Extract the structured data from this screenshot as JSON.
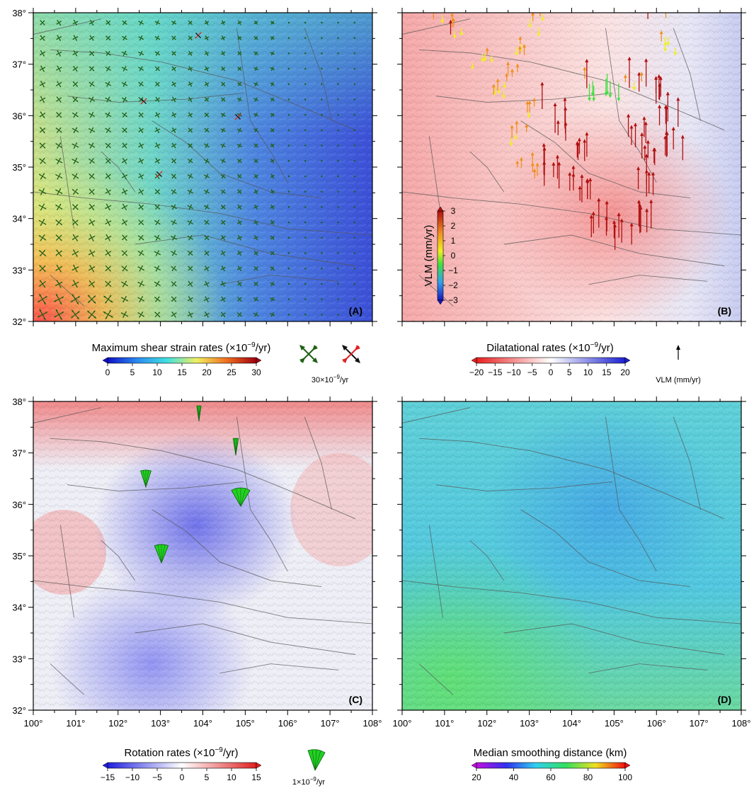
{
  "figure": {
    "x_axis_labels": [
      "100°",
      "101°",
      "102°",
      "103°",
      "104°",
      "105°",
      "106°",
      "107°",
      "108°"
    ],
    "y_axis_labels": [
      "38°",
      "37°",
      "36°",
      "35°",
      "34°",
      "33°",
      "32°"
    ],
    "colors": {
      "fault_line": "#555555",
      "strain_arrow": "#1f5f14",
      "strain_arrow_highlight": "#e02020",
      "rotation_wedge": "#22d022"
    }
  },
  "panels": [
    {
      "id": "A",
      "label": "(A)"
    },
    {
      "id": "B",
      "label": "(B)"
    },
    {
      "id": "C",
      "label": "(C)"
    },
    {
      "id": "D",
      "label": "(D)"
    }
  ],
  "colorbars": {
    "shear": {
      "title": "Maximum shear strain rates (×10",
      "title_sup": "−9",
      "title_end": "/yr)",
      "ticks": [
        "0",
        "5",
        "10",
        "15",
        "20",
        "25",
        "30"
      ],
      "legend_label": "30×10",
      "legend_sup": "−9",
      "legend_end": "/yr"
    },
    "dilatation": {
      "title": "Dilatational rates (×10",
      "title_sup": "−9",
      "title_end": "/yr)",
      "ticks": [
        "−20",
        "−15",
        "−10",
        "−5",
        "0",
        "5",
        "10",
        "15",
        "20"
      ],
      "legend_label": "VLM (mm/yr)"
    },
    "vlm": {
      "title": "VLM (mm/yr)",
      "ticks": [
        "3",
        "2",
        "1",
        "0",
        "−1",
        "−2",
        "−3"
      ]
    },
    "rotation": {
      "title": "Rotation rates (×10",
      "title_sup": "−9",
      "title_end": "/yr)",
      "ticks": [
        "−15",
        "−10",
        "−5",
        "0",
        "5",
        "10",
        "15"
      ],
      "legend_label": "1×10",
      "legend_sup": "−9",
      "legend_end": "/yr"
    },
    "smoothing": {
      "title": "Median smoothing distance (km)",
      "ticks": [
        "20",
        "40",
        "60",
        "80",
        "100"
      ]
    }
  }
}
